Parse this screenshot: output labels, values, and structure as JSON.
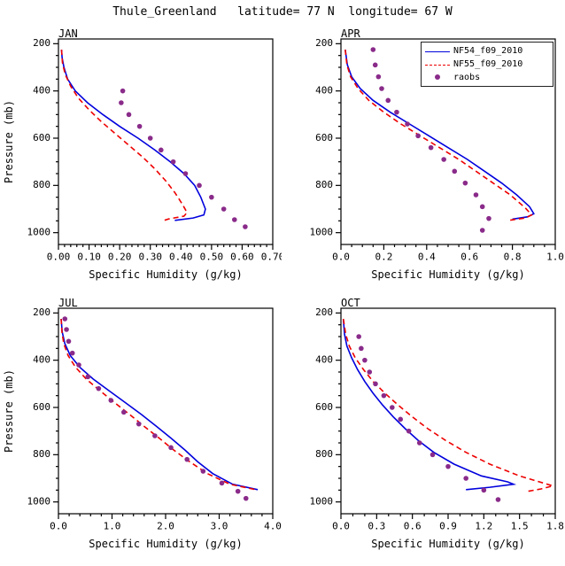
{
  "title": "Thule_Greenland   latitude= 77 N  longitude= 67 W",
  "colors": {
    "model1": "#0000dd",
    "model2": "#ee0000",
    "raobs": "#8a2b8a",
    "frame": "#000000"
  },
  "legend": {
    "items": [
      {
        "label": "NF54_f09_2010",
        "style": "solid",
        "color": "#0000dd"
      },
      {
        "label": "NF55_f09_2010",
        "style": "dashed",
        "color": "#ee0000"
      },
      {
        "label": "raobs",
        "style": "dot",
        "color": "#8a2b8a"
      }
    ]
  },
  "chart_data": [
    {
      "type": "line",
      "panel_label": "JAN",
      "xlabel": "Specific Humidity (g/kg)",
      "ylabel": "Pressure (mb)",
      "xlim": [
        0.0,
        0.7
      ],
      "xticks": [
        0.0,
        0.1,
        0.2,
        0.3,
        0.4,
        0.5,
        0.6,
        0.7
      ],
      "xtick_labels": [
        "0.00",
        "0.10",
        "0.20",
        "0.30",
        "0.40",
        "0.50",
        "0.60",
        "0.70"
      ],
      "xminor": 5,
      "ylim": [
        180,
        1050
      ],
      "yticks": [
        200,
        400,
        600,
        800,
        1000
      ],
      "ytick_labels": [
        "200",
        "400",
        "600",
        "800",
        "1000"
      ],
      "yminor_step": 50,
      "series": [
        {
          "name": "NF54_f09_2010",
          "color": "#0000dd",
          "style": "solid",
          "points": [
            [
              0.01,
              225
            ],
            [
              0.012,
              260
            ],
            [
              0.018,
              300
            ],
            [
              0.03,
              350
            ],
            [
              0.055,
              400
            ],
            [
              0.095,
              450
            ],
            [
              0.145,
              500
            ],
            [
              0.2,
              550
            ],
            [
              0.26,
              600
            ],
            [
              0.315,
              650
            ],
            [
              0.365,
              700
            ],
            [
              0.41,
              750
            ],
            [
              0.445,
              800
            ],
            [
              0.465,
              850
            ],
            [
              0.48,
              900
            ],
            [
              0.475,
              925
            ],
            [
              0.44,
              938
            ],
            [
              0.38,
              948
            ]
          ]
        },
        {
          "name": "NF55_f09_2010",
          "color": "#ee0000",
          "style": "dashed",
          "points": [
            [
              0.01,
              225
            ],
            [
              0.013,
              280
            ],
            [
              0.022,
              330
            ],
            [
              0.04,
              380
            ],
            [
              0.065,
              430
            ],
            [
              0.1,
              480
            ],
            [
              0.14,
              530
            ],
            [
              0.185,
              580
            ],
            [
              0.23,
              630
            ],
            [
              0.275,
              680
            ],
            [
              0.315,
              730
            ],
            [
              0.35,
              780
            ],
            [
              0.38,
              830
            ],
            [
              0.405,
              880
            ],
            [
              0.42,
              915
            ],
            [
              0.41,
              930
            ],
            [
              0.36,
              942
            ],
            [
              0.345,
              948
            ]
          ]
        },
        {
          "name": "raobs",
          "color": "#8a2b8a",
          "style": "dots",
          "points": [
            [
              0.21,
              400
            ],
            [
              0.205,
              450
            ],
            [
              0.23,
              500
            ],
            [
              0.265,
              550
            ],
            [
              0.3,
              600
            ],
            [
              0.335,
              650
            ],
            [
              0.375,
              700
            ],
            [
              0.415,
              750
            ],
            [
              0.46,
              800
            ],
            [
              0.5,
              850
            ],
            [
              0.54,
              900
            ],
            [
              0.575,
              945
            ],
            [
              0.61,
              975
            ]
          ]
        }
      ]
    },
    {
      "type": "line",
      "panel_label": "APR",
      "xlabel": "Specific Humidity (g/kg)",
      "ylabel": "",
      "xlim": [
        0.0,
        1.0
      ],
      "xticks": [
        0.0,
        0.2,
        0.4,
        0.6,
        0.8,
        1.0
      ],
      "xtick_labels": [
        "0.0",
        "0.2",
        "0.4",
        "0.6",
        "0.8",
        "1.0"
      ],
      "xminor": 4,
      "ylim": [
        180,
        1050
      ],
      "yticks": [
        200,
        400,
        600,
        800,
        1000
      ],
      "ytick_labels": [
        "200",
        "400",
        "600",
        "800",
        "1000"
      ],
      "yminor_step": 50,
      "series": [
        {
          "name": "NF54_f09_2010",
          "color": "#0000dd",
          "style": "solid",
          "points": [
            [
              0.02,
              225
            ],
            [
              0.03,
              290
            ],
            [
              0.05,
              340
            ],
            [
              0.09,
              390
            ],
            [
              0.15,
              440
            ],
            [
              0.23,
              490
            ],
            [
              0.32,
              540
            ],
            [
              0.41,
              590
            ],
            [
              0.5,
              640
            ],
            [
              0.59,
              690
            ],
            [
              0.67,
              740
            ],
            [
              0.75,
              790
            ],
            [
              0.82,
              840
            ],
            [
              0.88,
              890
            ],
            [
              0.9,
              920
            ],
            [
              0.87,
              933
            ],
            [
              0.8,
              943
            ]
          ]
        },
        {
          "name": "NF55_f09_2010",
          "color": "#ee0000",
          "style": "dashed",
          "points": [
            [
              0.02,
              225
            ],
            [
              0.028,
              290
            ],
            [
              0.045,
              340
            ],
            [
              0.08,
              390
            ],
            [
              0.13,
              440
            ],
            [
              0.2,
              490
            ],
            [
              0.28,
              540
            ],
            [
              0.37,
              590
            ],
            [
              0.46,
              640
            ],
            [
              0.55,
              690
            ],
            [
              0.63,
              740
            ],
            [
              0.71,
              790
            ],
            [
              0.79,
              840
            ],
            [
              0.86,
              895
            ],
            [
              0.89,
              925
            ],
            [
              0.86,
              938
            ],
            [
              0.79,
              947
            ]
          ]
        },
        {
          "name": "raobs",
          "color": "#8a2b8a",
          "style": "dots",
          "points": [
            [
              0.15,
              225
            ],
            [
              0.16,
              290
            ],
            [
              0.175,
              340
            ],
            [
              0.19,
              390
            ],
            [
              0.22,
              440
            ],
            [
              0.26,
              490
            ],
            [
              0.31,
              540
            ],
            [
              0.36,
              590
            ],
            [
              0.42,
              640
            ],
            [
              0.48,
              690
            ],
            [
              0.53,
              740
            ],
            [
              0.58,
              790
            ],
            [
              0.63,
              840
            ],
            [
              0.66,
              890
            ],
            [
              0.69,
              940
            ],
            [
              0.66,
              990
            ]
          ]
        }
      ]
    },
    {
      "type": "line",
      "panel_label": "JUL",
      "xlabel": "Specific Humidity (g/kg)",
      "ylabel": "Pressure (mb)",
      "xlim": [
        0.0,
        4.0
      ],
      "xticks": [
        0.0,
        1.0,
        2.0,
        3.0,
        4.0
      ],
      "xtick_labels": [
        "0.0",
        "1.0",
        "2.0",
        "3.0",
        "4.0"
      ],
      "xminor": 5,
      "ylim": [
        180,
        1050
      ],
      "yticks": [
        200,
        400,
        600,
        800,
        1000
      ],
      "ytick_labels": [
        "200",
        "400",
        "600",
        "800",
        "1000"
      ],
      "yminor_step": 50,
      "series": [
        {
          "name": "NF54_f09_2010",
          "color": "#0000dd",
          "style": "solid",
          "points": [
            [
              0.05,
              225
            ],
            [
              0.07,
              280
            ],
            [
              0.12,
              330
            ],
            [
              0.22,
              380
            ],
            [
              0.4,
              430
            ],
            [
              0.65,
              480
            ],
            [
              0.95,
              530
            ],
            [
              1.25,
              580
            ],
            [
              1.55,
              630
            ],
            [
              1.83,
              680
            ],
            [
              2.1,
              730
            ],
            [
              2.36,
              780
            ],
            [
              2.6,
              830
            ],
            [
              2.88,
              880
            ],
            [
              3.25,
              925
            ],
            [
              3.72,
              948
            ]
          ]
        },
        {
          "name": "NF55_f09_2010",
          "color": "#ee0000",
          "style": "dashed",
          "points": [
            [
              0.05,
              225
            ],
            [
              0.065,
              280
            ],
            [
              0.1,
              330
            ],
            [
              0.18,
              380
            ],
            [
              0.32,
              430
            ],
            [
              0.52,
              480
            ],
            [
              0.78,
              530
            ],
            [
              1.05,
              580
            ],
            [
              1.33,
              630
            ],
            [
              1.6,
              680
            ],
            [
              1.88,
              730
            ],
            [
              2.15,
              780
            ],
            [
              2.45,
              830
            ],
            [
              2.78,
              880
            ],
            [
              3.2,
              925
            ],
            [
              3.68,
              948
            ]
          ]
        },
        {
          "name": "raobs",
          "color": "#8a2b8a",
          "style": "dots",
          "points": [
            [
              0.12,
              225
            ],
            [
              0.15,
              270
            ],
            [
              0.19,
              320
            ],
            [
              0.26,
              370
            ],
            [
              0.38,
              420
            ],
            [
              0.55,
              470
            ],
            [
              0.75,
              520
            ],
            [
              0.98,
              570
            ],
            [
              1.22,
              620
            ],
            [
              1.5,
              670
            ],
            [
              1.8,
              720
            ],
            [
              2.1,
              770
            ],
            [
              2.4,
              820
            ],
            [
              2.7,
              870
            ],
            [
              3.05,
              920
            ],
            [
              3.35,
              955
            ],
            [
              3.5,
              985
            ]
          ]
        }
      ]
    },
    {
      "type": "line",
      "panel_label": "OCT",
      "xlabel": "Specific Humidity (g/kg)",
      "ylabel": "",
      "xlim": [
        0.0,
        1.8
      ],
      "xticks": [
        0.0,
        0.3,
        0.6,
        0.9,
        1.2,
        1.5,
        1.8
      ],
      "xtick_labels": [
        "0.0",
        "0.3",
        "0.6",
        "0.9",
        "1.2",
        "1.5",
        "1.8"
      ],
      "xminor": 3,
      "ylim": [
        180,
        1050
      ],
      "yticks": [
        200,
        400,
        600,
        800,
        1000
      ],
      "ytick_labels": [
        "200",
        "400",
        "600",
        "800",
        "1000"
      ],
      "yminor_step": 50,
      "series": [
        {
          "name": "NF54_f09_2010",
          "color": "#0000dd",
          "style": "solid",
          "points": [
            [
              0.02,
              225
            ],
            [
              0.03,
              290
            ],
            [
              0.05,
              340
            ],
            [
              0.09,
              390
            ],
            [
              0.14,
              440
            ],
            [
              0.2,
              490
            ],
            [
              0.27,
              540
            ],
            [
              0.35,
              590
            ],
            [
              0.44,
              640
            ],
            [
              0.54,
              690
            ],
            [
              0.65,
              740
            ],
            [
              0.78,
              790
            ],
            [
              0.95,
              840
            ],
            [
              1.18,
              890
            ],
            [
              1.4,
              915
            ],
            [
              1.45,
              925
            ],
            [
              1.25,
              938
            ],
            [
              1.05,
              948
            ]
          ]
        },
        {
          "name": "NF55_f09_2010",
          "color": "#ee0000",
          "style": "dashed",
          "points": [
            [
              0.02,
              225
            ],
            [
              0.04,
              290
            ],
            [
              0.07,
              340
            ],
            [
              0.12,
              390
            ],
            [
              0.19,
              440
            ],
            [
              0.27,
              490
            ],
            [
              0.37,
              540
            ],
            [
              0.48,
              590
            ],
            [
              0.6,
              640
            ],
            [
              0.73,
              690
            ],
            [
              0.88,
              740
            ],
            [
              1.05,
              790
            ],
            [
              1.25,
              840
            ],
            [
              1.5,
              890
            ],
            [
              1.7,
              920
            ],
            [
              1.78,
              932
            ],
            [
              1.68,
              945
            ],
            [
              1.57,
              955
            ]
          ]
        },
        {
          "name": "raobs",
          "color": "#8a2b8a",
          "style": "dots",
          "points": [
            [
              0.15,
              300
            ],
            [
              0.17,
              350
            ],
            [
              0.2,
              400
            ],
            [
              0.24,
              450
            ],
            [
              0.29,
              500
            ],
            [
              0.36,
              550
            ],
            [
              0.43,
              600
            ],
            [
              0.5,
              650
            ],
            [
              0.57,
              700
            ],
            [
              0.66,
              750
            ],
            [
              0.77,
              800
            ],
            [
              0.9,
              850
            ],
            [
              1.05,
              900
            ],
            [
              1.2,
              950
            ],
            [
              1.32,
              990
            ]
          ]
        }
      ]
    }
  ]
}
